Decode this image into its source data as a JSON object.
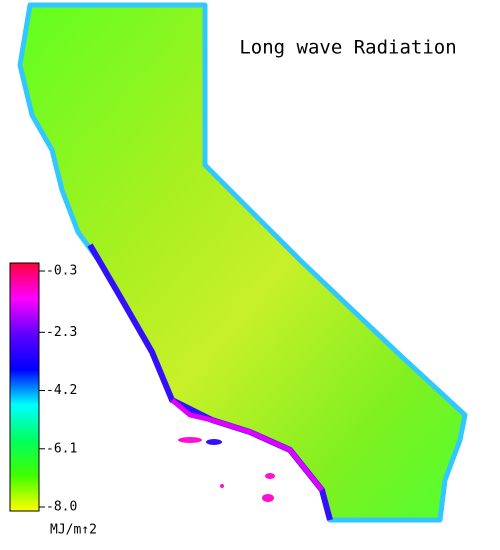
{
  "title": "Long wave Radiation",
  "colorbar": {
    "unit": "MJ/m↑2",
    "lim": [
      -8,
      -0.3
    ],
    "ticks": [
      -0.3,
      -2.3,
      -4.2,
      -6.1,
      {
        "value": -8,
        "label": "-8.0"
      }
    ],
    "colors": [
      "#ff0040",
      "#ff00ff",
      "#6000ff",
      "#0000ff",
      "#00ffff",
      "#00ff60",
      "#40ff00",
      "#ffff00"
    ]
  }
}
